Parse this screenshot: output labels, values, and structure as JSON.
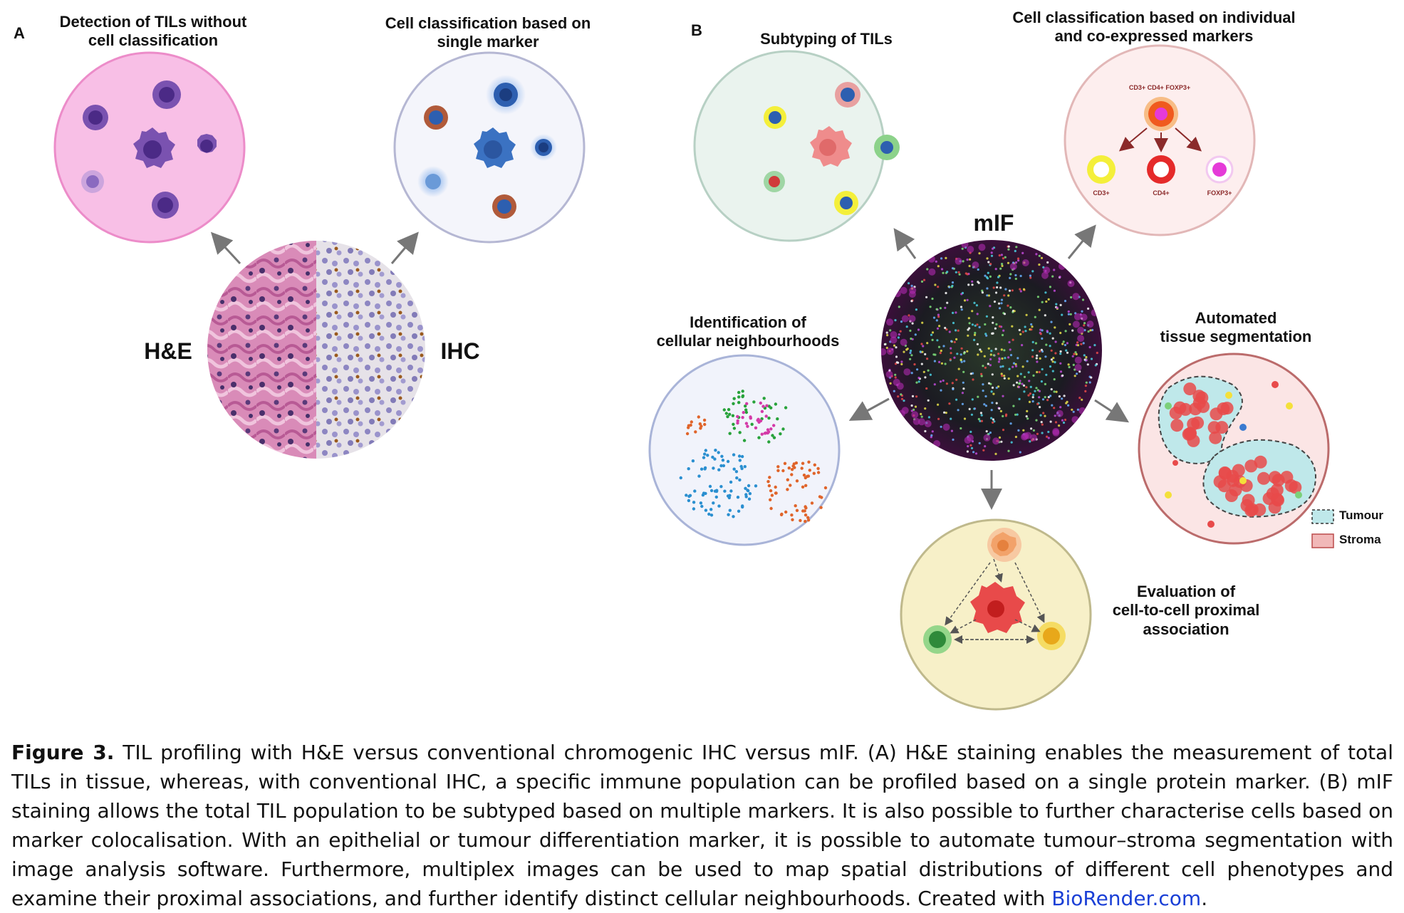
{
  "panelA": {
    "letter": "A",
    "title_left": [
      "Detection of TILs without",
      "cell classification"
    ],
    "title_right": [
      "Cell classification based on",
      "single marker"
    ],
    "label_he": "H&E",
    "label_ihc": "IHC"
  },
  "panelB": {
    "letter": "B",
    "subtyping": "Subtyping of TILs",
    "coexpr": [
      "Cell classification based on individual",
      "and co-expressed markers"
    ],
    "mif": "mIF",
    "neighbourhoods": [
      "Identification of",
      "cellular neighbourhoods"
    ],
    "segmentation": [
      "Automated",
      "tissue segmentation"
    ],
    "proximal": [
      "Evaluation of",
      "cell-to-cell proximal",
      "association"
    ],
    "marker_top": "CD3+ CD4+ FOXP3+",
    "marker_cd3": "CD3+",
    "marker_cd4": "CD4+",
    "marker_foxp3": "FOXP3+",
    "legend_tumour": "Tumour",
    "legend_stroma": "Stroma"
  },
  "caption": {
    "label": "Figure 3.",
    "text": "TIL profiling with H&E versus conventional chromogenic IHC versus mIF. (A) H&E staining enables the measurement of total TILs in tissue, whereas, with conventional IHC, a specific immune population can be profiled based on a single protein marker. (B) mIF staining allows the total TIL population to be subtyped based on multiple markers. It is also possible to further characterise cells based on marker colocalisation. With an epithelial or tumour differentiation marker, it is possible to automate tumour–stroma segmentation with image analysis software. Furthermore, multiplex images can be used to map spatial distributions of different cell phenotypes and examine their proximal associations, and further identify distinct cellular neighbourhoods. Created with",
    "link": "BioRender.com",
    "end": "."
  },
  "colors": {
    "he_pink": "#f7bde6",
    "ihc_bg": "#f3f4fb",
    "sub_bg": "#e9f3ee",
    "coexpr_bg": "#fdeeee",
    "neigh_bg": "#f1f3fb",
    "seg_bg": "#fbe5e5",
    "prox_bg": "#f6efc6",
    "link_blue": "#1a3fd6"
  }
}
